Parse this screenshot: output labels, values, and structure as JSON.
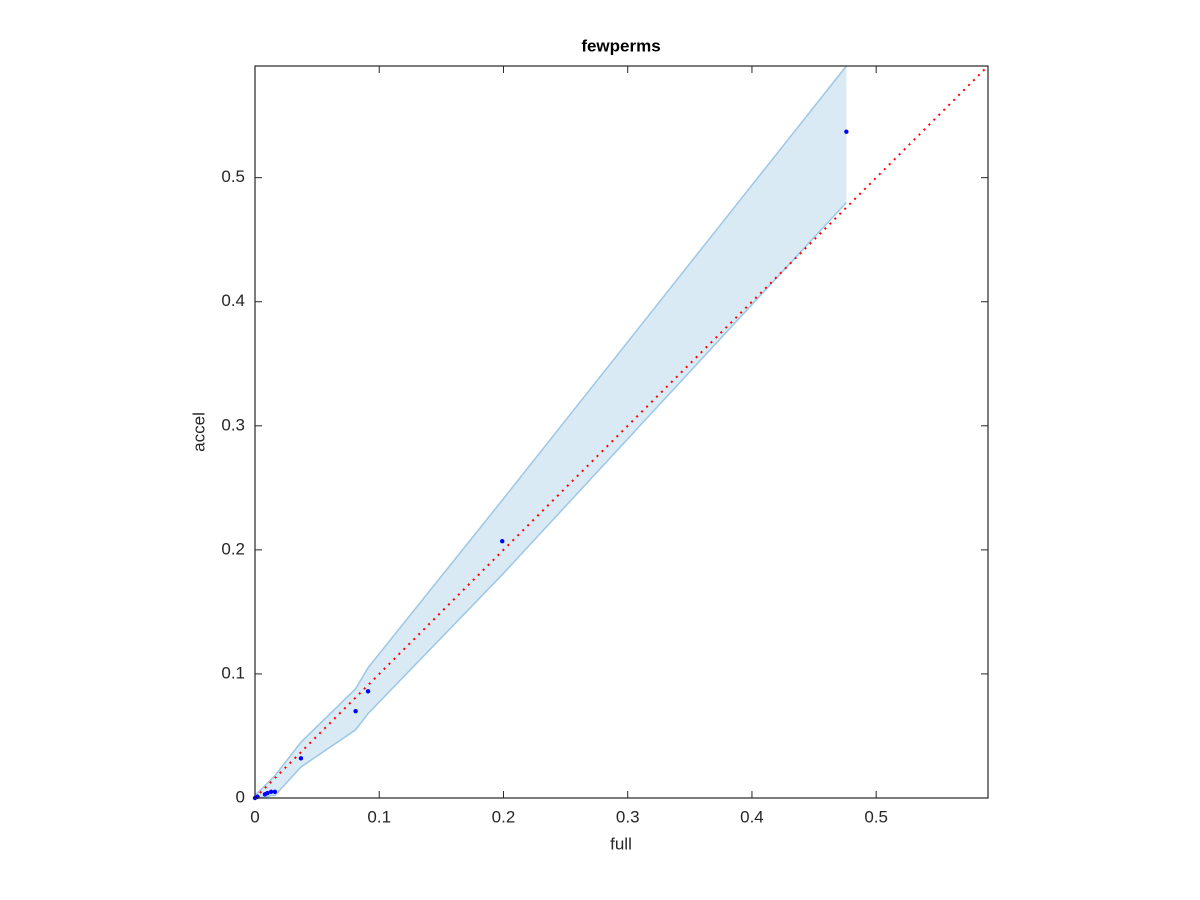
{
  "chart_data": {
    "type": "scatter",
    "title": "fewperms",
    "x_label": "full",
    "y_label": "accel",
    "xlim": [
      0,
      0.59
    ],
    "ylim": [
      0,
      0.59
    ],
    "xticks": [
      0,
      0.1,
      0.2,
      0.3,
      0.4,
      0.5
    ],
    "yticks": [
      0,
      0.1,
      0.2,
      0.3,
      0.4,
      0.5
    ],
    "grid": false,
    "points": {
      "color": "#0000ff",
      "x": [
        0,
        0.002,
        0.008,
        0.01,
        0.013,
        0.016,
        0.037,
        0.081,
        0.091,
        0.199,
        0.476
      ],
      "y": [
        0,
        0.001,
        0.003,
        0.004,
        0.005,
        0.005,
        0.032,
        0.07,
        0.086,
        0.207,
        0.537
      ]
    },
    "band": {
      "color": "#9cc7e6",
      "x": [
        0,
        0.002,
        0.008,
        0.01,
        0.013,
        0.016,
        0.037,
        0.081,
        0.091,
        0.199,
        0.476
      ],
      "upper": [
        0.003,
        0.004,
        0.01,
        0.012,
        0.015,
        0.018,
        0.045,
        0.088,
        0.105,
        0.24,
        0.59
      ],
      "lower": [
        0,
        0,
        0.001,
        0.001,
        0.002,
        0.002,
        0.025,
        0.055,
        0.068,
        0.18,
        0.48
      ]
    },
    "reference_line": {
      "color": "#ff0000",
      "x": [
        0,
        0.59
      ],
      "y": [
        0,
        0.59
      ]
    }
  }
}
